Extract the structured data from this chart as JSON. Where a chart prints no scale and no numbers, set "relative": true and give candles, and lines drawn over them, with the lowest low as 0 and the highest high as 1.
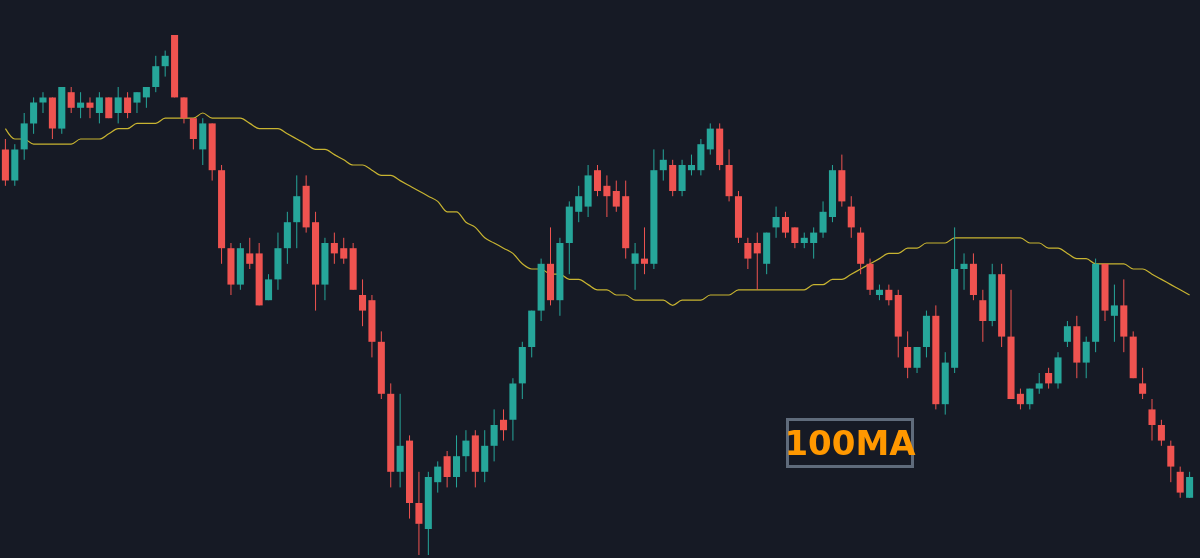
{
  "chart_data": {
    "type": "candlestick",
    "relative": true,
    "categories": [
      null,
      null,
      null,
      null,
      null,
      null,
      null,
      null,
      null,
      null,
      null,
      null,
      null,
      null,
      null,
      null,
      null,
      null,
      null,
      null,
      null,
      null,
      null,
      null,
      null,
      null,
      null,
      null,
      null,
      null,
      null,
      null,
      null,
      null,
      null,
      null,
      null,
      null,
      null,
      null,
      null,
      null,
      null,
      null,
      null,
      null,
      null,
      null,
      null,
      null,
      null,
      null,
      null,
      null,
      null,
      null,
      null,
      null,
      null,
      null,
      null,
      null,
      null,
      null,
      null,
      null,
      null,
      null,
      null,
      null,
      null,
      null,
      null,
      null,
      null,
      null,
      null,
      null,
      null,
      null,
      null,
      null,
      null,
      null,
      null,
      null,
      null,
      null,
      null,
      null,
      null,
      null,
      null,
      null,
      null,
      null,
      null,
      null,
      null,
      null,
      null,
      null,
      null,
      null,
      null,
      null,
      null,
      null,
      null,
      null,
      null,
      null,
      null,
      null,
      null,
      null,
      null,
      null,
      null,
      null,
      null,
      null,
      null,
      null,
      null,
      null,
      null
    ],
    "ohlc": [
      [
        0.78,
        0.8,
        0.71,
        0.72
      ],
      [
        0.72,
        0.79,
        0.71,
        0.78
      ],
      [
        0.78,
        0.85,
        0.76,
        0.83
      ],
      [
        0.83,
        0.88,
        0.81,
        0.87
      ],
      [
        0.87,
        0.89,
        0.85,
        0.88
      ],
      [
        0.88,
        0.88,
        0.8,
        0.82
      ],
      [
        0.82,
        0.9,
        0.81,
        0.9
      ],
      [
        0.89,
        0.9,
        0.85,
        0.86
      ],
      [
        0.86,
        0.89,
        0.84,
        0.87
      ],
      [
        0.87,
        0.88,
        0.84,
        0.86
      ],
      [
        0.85,
        0.89,
        0.83,
        0.88
      ],
      [
        0.88,
        0.88,
        0.84,
        0.84
      ],
      [
        0.85,
        0.9,
        0.83,
        0.88
      ],
      [
        0.88,
        0.89,
        0.84,
        0.85
      ],
      [
        0.87,
        0.89,
        0.85,
        0.89
      ],
      [
        0.88,
        0.9,
        0.86,
        0.9
      ],
      [
        0.9,
        0.96,
        0.89,
        0.94
      ],
      [
        0.94,
        0.97,
        0.92,
        0.96
      ],
      [
        1.0,
        1.0,
        0.88,
        0.88
      ],
      [
        0.88,
        0.88,
        0.83,
        0.84
      ],
      [
        0.84,
        0.84,
        0.78,
        0.8
      ],
      [
        0.78,
        0.84,
        0.75,
        0.83
      ],
      [
        0.83,
        0.83,
        0.72,
        0.74
      ],
      [
        0.74,
        0.75,
        0.56,
        0.59
      ],
      [
        0.59,
        0.6,
        0.5,
        0.52
      ],
      [
        0.52,
        0.6,
        0.51,
        0.59
      ],
      [
        0.58,
        0.61,
        0.55,
        0.56
      ],
      [
        0.58,
        0.6,
        0.48,
        0.48
      ],
      [
        0.49,
        0.54,
        0.49,
        0.53
      ],
      [
        0.53,
        0.62,
        0.51,
        0.59
      ],
      [
        0.59,
        0.66,
        0.56,
        0.64
      ],
      [
        0.64,
        0.73,
        0.59,
        0.69
      ],
      [
        0.71,
        0.73,
        0.62,
        0.63
      ],
      [
        0.64,
        0.66,
        0.47,
        0.52
      ],
      [
        0.52,
        0.61,
        0.49,
        0.6
      ],
      [
        0.6,
        0.62,
        0.56,
        0.58
      ],
      [
        0.59,
        0.61,
        0.56,
        0.57
      ],
      [
        0.59,
        0.6,
        0.51,
        0.51
      ],
      [
        0.5,
        0.53,
        0.44,
        0.47
      ],
      [
        0.49,
        0.5,
        0.38,
        0.41
      ],
      [
        0.41,
        0.43,
        0.3,
        0.31
      ],
      [
        0.31,
        0.33,
        0.13,
        0.16
      ],
      [
        0.16,
        0.31,
        0.13,
        0.21
      ],
      [
        0.22,
        0.23,
        0.07,
        0.1
      ],
      [
        0.1,
        0.16,
        0,
        0.06
      ],
      [
        0.05,
        0.16,
        0,
        0.15
      ],
      [
        0.14,
        0.18,
        0.12,
        0.17
      ],
      [
        0.19,
        0.2,
        0.13,
        0.15
      ],
      [
        0.15,
        0.23,
        0.13,
        0.19
      ],
      [
        0.19,
        0.24,
        0.16,
        0.22
      ],
      [
        0.23,
        0.24,
        0.13,
        0.16
      ],
      [
        0.16,
        0.24,
        0.14,
        0.21
      ],
      [
        0.21,
        0.28,
        0.18,
        0.25
      ],
      [
        0.26,
        0.28,
        0.22,
        0.24
      ],
      [
        0.26,
        0.34,
        0.22,
        0.33
      ],
      [
        0.33,
        0.41,
        0.3,
        0.4
      ],
      [
        0.4,
        0.47,
        0.38,
        0.47
      ],
      [
        0.47,
        0.57,
        0.45,
        0.56
      ],
      [
        0.56,
        0.63,
        0.48,
        0.49
      ],
      [
        0.49,
        0.61,
        0.46,
        0.6
      ],
      [
        0.6,
        0.68,
        0.54,
        0.67
      ],
      [
        0.66,
        0.71,
        0.64,
        0.69
      ],
      [
        0.67,
        0.75,
        0.65,
        0.73
      ],
      [
        0.74,
        0.75,
        0.69,
        0.7
      ],
      [
        0.71,
        0.73,
        0.65,
        0.69
      ],
      [
        0.7,
        0.72,
        0.66,
        0.67
      ],
      [
        0.69,
        0.72,
        0.57,
        0.59
      ],
      [
        0.56,
        0.6,
        0.51,
        0.58
      ],
      [
        0.57,
        0.63,
        0.54,
        0.56
      ],
      [
        0.56,
        0.78,
        0.55,
        0.74
      ],
      [
        0.74,
        0.78,
        0.72,
        0.76
      ],
      [
        0.75,
        0.76,
        0.69,
        0.7
      ],
      [
        0.7,
        0.76,
        0.69,
        0.75
      ],
      [
        0.74,
        0.77,
        0.73,
        0.75
      ],
      [
        0.74,
        0.8,
        0.73,
        0.79
      ],
      [
        0.78,
        0.83,
        0.77,
        0.82
      ],
      [
        0.82,
        0.83,
        0.74,
        0.75
      ],
      [
        0.75,
        0.78,
        0.68,
        0.69
      ],
      [
        0.69,
        0.7,
        0.6,
        0.61
      ],
      [
        0.6,
        0.61,
        0.55,
        0.57
      ],
      [
        0.6,
        0.62,
        0.51,
        0.58
      ],
      [
        0.56,
        0.62,
        0.54,
        0.62
      ],
      [
        0.63,
        0.67,
        0.61,
        0.65
      ],
      [
        0.65,
        0.66,
        0.61,
        0.62
      ],
      [
        0.63,
        0.63,
        0.59,
        0.6
      ],
      [
        0.6,
        0.62,
        0.59,
        0.61
      ],
      [
        0.6,
        0.63,
        0.57,
        0.62
      ],
      [
        0.62,
        0.68,
        0.61,
        0.66
      ],
      [
        0.65,
        0.75,
        0.64,
        0.74
      ],
      [
        0.74,
        0.77,
        0.67,
        0.68
      ],
      [
        0.67,
        0.69,
        0.61,
        0.63
      ],
      [
        0.62,
        0.63,
        0.54,
        0.56
      ],
      [
        0.56,
        0.57,
        0.5,
        0.51
      ],
      [
        0.5,
        0.52,
        0.49,
        0.51
      ],
      [
        0.51,
        0.52,
        0.48,
        0.49
      ],
      [
        0.5,
        0.51,
        0.38,
        0.42
      ],
      [
        0.4,
        0.43,
        0.34,
        0.36
      ],
      [
        0.36,
        0.4,
        0.35,
        0.4
      ],
      [
        0.4,
        0.47,
        0.38,
        0.46
      ],
      [
        0.46,
        0.48,
        0.28,
        0.29
      ],
      [
        0.29,
        0.39,
        0.27,
        0.37
      ],
      [
        0.36,
        0.63,
        0.35,
        0.55
      ],
      [
        0.55,
        0.58,
        0.51,
        0.56
      ],
      [
        0.56,
        0.58,
        0.49,
        0.5
      ],
      [
        0.49,
        0.51,
        0.41,
        0.45
      ],
      [
        0.45,
        0.56,
        0.44,
        0.54
      ],
      [
        0.54,
        0.56,
        0.4,
        0.42
      ],
      [
        0.42,
        0.51,
        0.3,
        0.3
      ],
      [
        0.31,
        0.32,
        0.28,
        0.29
      ],
      [
        0.29,
        0.32,
        0.28,
        0.32
      ],
      [
        0.32,
        0.35,
        0.31,
        0.33
      ],
      [
        0.35,
        0.36,
        0.32,
        0.33
      ],
      [
        0.33,
        0.39,
        0.32,
        0.38
      ],
      [
        0.41,
        0.45,
        0.4,
        0.44
      ],
      [
        0.44,
        0.46,
        0.34,
        0.37
      ],
      [
        0.37,
        0.42,
        0.34,
        0.41
      ],
      [
        0.41,
        0.57,
        0.39,
        0.56
      ],
      [
        0.56,
        0.56,
        0.45,
        0.47
      ],
      [
        0.46,
        0.52,
        0.41,
        0.48
      ],
      [
        0.48,
        0.53,
        0.39,
        0.42
      ],
      [
        0.42,
        0.43,
        0.34,
        0.34
      ],
      [
        0.33,
        0.36,
        0.3,
        0.31
      ],
      [
        0.28,
        0.3,
        0.22,
        0.25
      ],
      [
        0.25,
        0.26,
        0.21,
        0.22
      ],
      [
        0.21,
        0.22,
        0.14,
        0.17
      ],
      [
        0.16,
        0.17,
        0.11,
        0.12
      ],
      [
        0.11,
        0.16,
        0.11,
        0.15
      ]
    ],
    "series": [
      {
        "type": "line",
        "color": "#c8b431",
        "values": [
          0.82,
          0.8,
          0.8,
          0.79,
          0.79,
          0.79,
          0.79,
          0.79,
          0.8,
          0.8,
          0.8,
          0.81,
          0.82,
          0.82,
          0.83,
          0.83,
          0.83,
          0.84,
          0.84,
          0.84,
          0.84,
          0.85,
          0.84,
          0.84,
          0.84,
          0.84,
          0.83,
          0.82,
          0.82,
          0.82,
          0.81,
          0.8,
          0.79,
          0.78,
          0.78,
          0.77,
          0.76,
          0.75,
          0.75,
          0.74,
          0.73,
          0.73,
          0.72,
          0.71,
          0.7,
          0.69,
          0.68,
          0.66,
          0.66,
          0.64,
          0.63,
          0.61,
          0.6,
          0.59,
          0.58,
          0.56,
          0.55,
          0.55,
          0.54,
          0.54,
          0.53,
          0.53,
          0.52,
          0.51,
          0.51,
          0.5,
          0.5,
          0.49,
          0.49,
          0.49,
          0.49,
          0.48,
          0.49,
          0.49,
          0.49,
          0.5,
          0.5,
          0.5,
          0.51,
          0.51,
          0.51,
          0.51,
          0.51,
          0.51,
          0.51,
          0.51,
          0.52,
          0.52,
          0.53,
          0.53,
          0.54,
          0.55,
          0.56,
          0.57,
          0.58,
          0.58,
          0.59,
          0.59,
          0.6,
          0.6,
          0.6,
          0.61,
          0.61,
          0.61,
          0.61,
          0.61,
          0.61,
          0.61,
          0.61,
          0.6,
          0.6,
          0.59,
          0.59,
          0.58,
          0.57,
          0.57,
          0.56,
          0.56,
          0.56,
          0.56,
          0.55,
          0.55,
          0.54,
          0.53,
          0.52,
          0.51,
          0.5
        ]
      }
    ],
    "annotations": [
      "100MA"
    ]
  }
}
